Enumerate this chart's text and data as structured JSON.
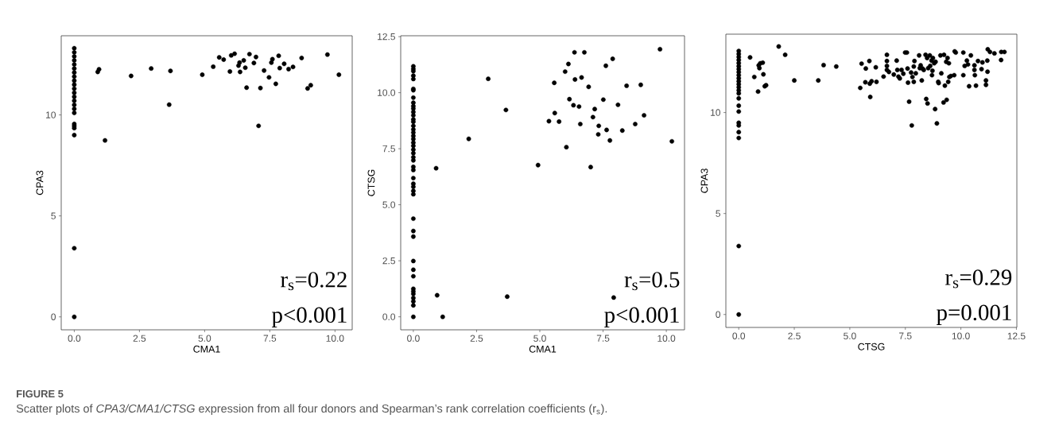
{
  "chart_data": [
    {
      "type": "scatter",
      "xlabel": "CMA1",
      "ylabel": "CPA3",
      "color": "#000000",
      "marker": "circle",
      "grid": false,
      "xlim": [
        -0.5,
        10.66
      ],
      "ylim": [
        -0.64,
        13.92
      ],
      "xticks": [
        {
          "value": 0,
          "label": "0.0"
        },
        {
          "value": 2.5,
          "label": "2.5"
        },
        {
          "value": 5,
          "label": "5.0"
        },
        {
          "value": 7.5,
          "label": "7.5"
        },
        {
          "value": 10,
          "label": "10.0"
        }
      ],
      "yticks": [
        0,
        5,
        10
      ],
      "x": [
        0,
        0,
        0,
        0,
        0,
        0,
        0,
        0,
        0,
        0,
        0,
        0,
        0,
        0,
        0,
        0,
        0,
        0,
        0,
        0,
        0,
        0,
        0,
        0.9,
        0.95,
        1.18,
        2.18,
        2.95,
        3.64,
        3.69,
        4.91,
        5.33,
        5.56,
        5.73,
        5.97,
        6.02,
        6.15,
        6.3,
        6.34,
        6.36,
        6.5,
        6.56,
        6.61,
        6.72,
        6.89,
        6.97,
        7.07,
        7.14,
        7.28,
        7.47,
        7.56,
        7.6,
        7.73,
        7.84,
        7.88,
        8.05,
        8.22,
        8.39,
        8.72,
        8.95,
        9.07,
        9.71,
        10.15
      ],
      "values": [
        13.3,
        13.1,
        12.9,
        12.7,
        12.5,
        12.3,
        12.1,
        11.9,
        11.7,
        11.5,
        11.3,
        11.1,
        10.9,
        10.7,
        10.5,
        10.3,
        10.1,
        9.55,
        9.45,
        9.35,
        9.0,
        3.4,
        0,
        12.13,
        12.26,
        8.74,
        11.93,
        12.3,
        10.51,
        12.18,
        11.99,
        12.39,
        12.85,
        12.74,
        12.15,
        12.95,
        13.03,
        12.44,
        12.59,
        12.13,
        12.7,
        12.34,
        11.35,
        13.01,
        12.57,
        12.87,
        9.46,
        11.33,
        12.2,
        11.86,
        12.59,
        12.76,
        11.54,
        12.93,
        12.32,
        12.53,
        12.27,
        12.38,
        12.82,
        11.31,
        11.47,
        12.99,
        11.99
      ],
      "annotations": [
        "r$_{s}$=0.22",
        "p<0.001",
        "FIGURE 5",
        "Scatter plots of *CPA3/CMA1/CTSG* expression from all four donors and Spearman’s rank correlation coefficients (r$_{s}$)."
      ]
    },
    {
      "type": "scatter",
      "xlabel": "CMA1",
      "ylabel": "CTSG",
      "color": "#000000",
      "marker": "circle",
      "grid": false,
      "xlim": [
        -0.5,
        10.72
      ],
      "ylim": [
        -0.58,
        12.54
      ],
      "xticks": [
        {
          "value": 0,
          "label": "0.0"
        },
        {
          "value": 2.5,
          "label": "2.5"
        },
        {
          "value": 5,
          "label": "5.0"
        },
        {
          "value": 7.5,
          "label": "7.5"
        },
        {
          "value": 10,
          "label": "10.0"
        }
      ],
      "yticks": [
        {
          "value": 0,
          "label": "0.0"
        },
        {
          "value": 2.5,
          "label": "2.5"
        },
        {
          "value": 5,
          "label": "5.0"
        },
        {
          "value": 7.5,
          "label": "7.5"
        },
        {
          "value": 10,
          "label": "10.0"
        },
        {
          "value": 12.5,
          "label": "12.5"
        }
      ],
      "x": [
        0,
        0,
        0,
        0,
        0,
        0,
        0,
        0,
        0,
        0,
        0,
        0,
        0,
        0,
        0,
        0,
        0,
        0,
        0,
        0,
        0,
        0,
        0,
        0,
        0,
        0,
        0,
        0,
        0,
        0,
        0,
        0,
        0,
        0,
        0,
        0,
        0,
        0,
        0,
        0,
        0,
        0,
        0,
        0,
        0,
        0,
        0.9,
        0.94,
        1.16,
        2.19,
        2.96,
        3.66,
        3.71,
        4.93,
        5.36,
        5.57,
        5.59,
        5.76,
        6.0,
        6.05,
        6.13,
        6.17,
        6.33,
        6.37,
        6.39,
        6.55,
        6.6,
        6.65,
        6.76,
        6.93,
        7.01,
        7.1,
        7.17,
        7.31,
        7.33,
        7.51,
        7.61,
        7.64,
        7.77,
        7.88,
        7.92,
        8.09,
        8.26,
        8.43,
        8.77,
        8.99,
        9.12,
        9.75,
        10.22
      ],
      "values": [
        11.18,
        11.06,
        10.96,
        10.76,
        10.61,
        10.17,
        10.11,
        9.78,
        9.55,
        9.4,
        9.29,
        9.14,
        8.99,
        8.81,
        8.7,
        8.52,
        8.36,
        8.22,
        8.07,
        7.93,
        7.77,
        7.63,
        7.46,
        7.3,
        7.12,
        6.98,
        6.69,
        6.55,
        6.19,
        5.94,
        5.8,
        5.62,
        5.47,
        4.38,
        3.83,
        3.58,
        2.49,
        2.1,
        1.81,
        1.25,
        1.13,
        1.02,
        0.84,
        0.69,
        0.51,
        0,
        6.63,
        0.96,
        0,
        7.94,
        10.62,
        9.23,
        0.9,
        6.77,
        8.73,
        10.44,
        9.09,
        8.71,
        10.94,
        7.57,
        11.28,
        9.71,
        9.44,
        11.8,
        10.59,
        9.38,
        8.6,
        10.68,
        11.8,
        10.26,
        6.68,
        8.91,
        9.27,
        8.14,
        8.52,
        9.69,
        11.2,
        8.34,
        7.87,
        11.51,
        0.86,
        9.46,
        8.31,
        10.31,
        8.6,
        10.35,
        8.99,
        11.94,
        7.83
      ],
      "annotations": [
        "r$_{s}$=0.5",
        "p<0.001"
      ]
    },
    {
      "type": "scatter",
      "xlabel": "CTSG",
      "ylabel": "CPA3",
      "color": "#000000",
      "marker": "circle",
      "grid": false,
      "xlim": [
        -0.58,
        12.52
      ],
      "ylim": [
        -0.64,
        13.88
      ],
      "xticks": [
        {
          "value": 0,
          "label": "0.0"
        },
        {
          "value": 2.5,
          "label": "2.5"
        },
        {
          "value": 5,
          "label": "5.0"
        },
        {
          "value": 7.5,
          "label": "7.5"
        },
        {
          "value": 10,
          "label": "10.0"
        },
        {
          "value": 12.5,
          "label": "12.5"
        }
      ],
      "yticks": [
        0,
        5,
        10
      ],
      "x": [
        0,
        0,
        0,
        0,
        0,
        0,
        0,
        0,
        0,
        0,
        0,
        0,
        0,
        0,
        0,
        0,
        0,
        0,
        0,
        0,
        0,
        0,
        0,
        0,
        0.51,
        0.7,
        0.87,
        0.9,
        0.93,
        0.97,
        1.08,
        1.11,
        1.17,
        1.23,
        1.8,
        2.09,
        2.5,
        3.58,
        3.82,
        4.39,
        5.47,
        5.53,
        5.7,
        5.72,
        5.88,
        5.9,
        5.92,
        5.98,
        6.17,
        6.2,
        6.52,
        6.67,
        6.67,
        6.67,
        6.67,
        6.76,
        6.98,
        7.11,
        7.14,
        7.19,
        7.25,
        7.33,
        7.41,
        7.49,
        7.57,
        7.6,
        7.62,
        7.67,
        7.76,
        7.79,
        7.82,
        7.88,
        7.88,
        7.91,
        7.97,
        8.12,
        8.15,
        8.19,
        8.24,
        8.27,
        8.33,
        8.41,
        8.44,
        8.48,
        8.5,
        8.53,
        8.6,
        8.62,
        8.68,
        8.7,
        8.72,
        8.74,
        8.8,
        8.84,
        8.86,
        8.92,
        8.98,
        9.0,
        9.08,
        9.12,
        9.22,
        9.24,
        9.28,
        9.34,
        9.36,
        9.4,
        9.43,
        9.46,
        9.48,
        9.55,
        9.7,
        9.72,
        9.77,
        10.11,
        10.11,
        10.17,
        10.27,
        10.32,
        10.37,
        10.45,
        10.61,
        10.61,
        10.63,
        10.68,
        10.77,
        10.93,
        10.97,
        11.13,
        11.13,
        11.19,
        11.2,
        11.21,
        11.31,
        11.51,
        11.81,
        11.82,
        11.96
      ],
      "values": [
        13.05,
        12.9,
        12.75,
        12.6,
        12.45,
        12.3,
        12.15,
        12.0,
        11.85,
        11.7,
        11.55,
        11.4,
        11.25,
        11.1,
        10.95,
        10.7,
        10.34,
        10.05,
        9.49,
        9.36,
        9.03,
        8.74,
        3.39,
        0,
        12.73,
        11.76,
        11.04,
        12.34,
        12.2,
        12.44,
        12.47,
        11.89,
        11.3,
        11.35,
        13.27,
        12.86,
        11.59,
        11.59,
        12.35,
        12.28,
        11.22,
        12.42,
        11.5,
        12.18,
        12.55,
        11.43,
        10.77,
        11.55,
        12.24,
        11.52,
        11.78,
        12.86,
        12.55,
        12.31,
        12.11,
        12.01,
        11.88,
        12.57,
        12.11,
        11.78,
        11.69,
        12.11,
        11.92,
        12.97,
        12.97,
        12.18,
        11.48,
        10.54,
        11.98,
        9.36,
        11.76,
        11.52,
        12.28,
        12.55,
        11.94,
        12.83,
        12.2,
        12.34,
        11.59,
        12.18,
        12.11,
        12.86,
        10.67,
        12.7,
        10.45,
        12.2,
        12.83,
        12.31,
        12.57,
        11.85,
        12.07,
        12.7,
        12.44,
        10.17,
        12.51,
        9.46,
        11.52,
        11.46,
        12.83,
        11.94,
        10.5,
        12.86,
        11.33,
        12.51,
        10.63,
        12.7,
        11.52,
        12.44,
        11.76,
        11.81,
        11.85,
        13.03,
        12.97,
        12.97,
        11.85,
        12.31,
        12.57,
        12.38,
        11.3,
        12.83,
        12.34,
        12.11,
        11.85,
        11.33,
        12.55,
        12.15,
        12.48,
        11.59,
        11.37,
        12.57,
        12.02,
        13.13,
        13.0,
        12.93,
        12.6,
        13.0,
        13.0
      ],
      "annotations": [
        "r$_{s}$=0.29",
        "p=0.001"
      ]
    }
  ]
}
